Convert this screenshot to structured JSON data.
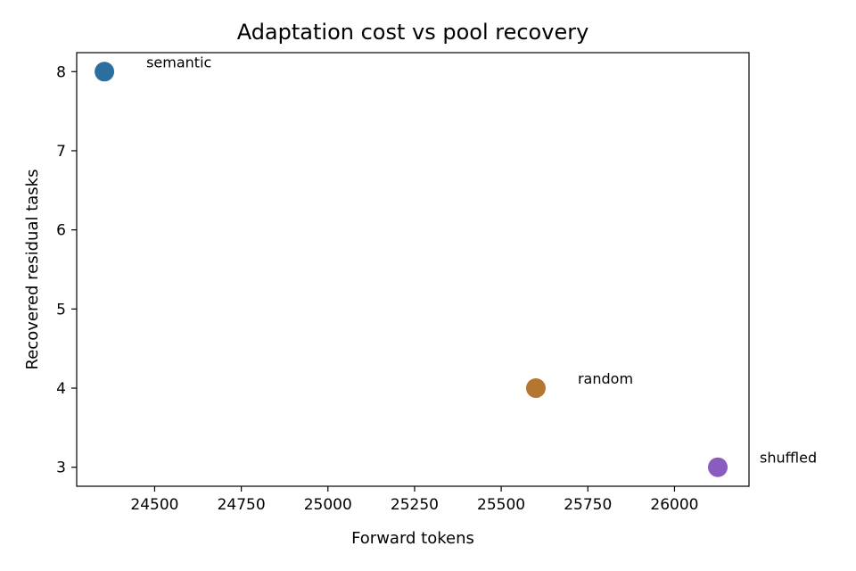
{
  "chart_data": {
    "type": "scatter",
    "title": "Adaptation cost vs pool recovery",
    "xlabel": "Forward tokens",
    "ylabel": "Recovered residual tasks",
    "xlim": [
      24275,
      26215
    ],
    "ylim": [
      2.76,
      8.24
    ],
    "xticks": [
      24500,
      24750,
      25000,
      25250,
      25500,
      25750,
      26000
    ],
    "yticks": [
      3,
      4,
      5,
      6,
      7,
      8
    ],
    "grid": false,
    "points": [
      {
        "label": "semantic",
        "x": 24355,
        "y": 8,
        "color": "#2c6e9e"
      },
      {
        "label": "random",
        "x": 25600,
        "y": 4,
        "color": "#b5762f"
      },
      {
        "label": "shuffled",
        "x": 26125,
        "y": 3,
        "color": "#8a5cc0"
      }
    ]
  }
}
